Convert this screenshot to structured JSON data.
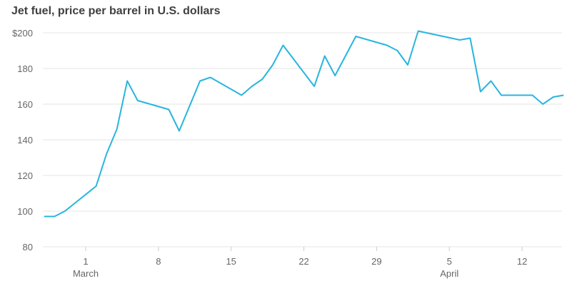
{
  "chart_data": {
    "type": "line",
    "title": "Jet fuel, price per barrel in U.S. dollars",
    "xlabel": "",
    "ylabel": "",
    "ylim": [
      80,
      200
    ],
    "yticks": [
      {
        "value": 200,
        "label": "$200"
      },
      {
        "value": 180,
        "label": "180"
      },
      {
        "value": 160,
        "label": "160"
      },
      {
        "value": 140,
        "label": "140"
      },
      {
        "value": 120,
        "label": "120"
      },
      {
        "value": 100,
        "label": "100"
      },
      {
        "value": 80,
        "label": "80"
      }
    ],
    "x_unit": "days since March 1",
    "xlim": [
      -4.1,
      46.2
    ],
    "xticks": [
      {
        "value": 0,
        "label": "1",
        "month": "March"
      },
      {
        "value": 7,
        "label": "8"
      },
      {
        "value": 14,
        "label": "15"
      },
      {
        "value": 21,
        "label": "22"
      },
      {
        "value": 28,
        "label": "29"
      },
      {
        "value": 35,
        "label": "5",
        "month": "April"
      },
      {
        "value": 42,
        "label": "12"
      }
    ],
    "grid": true,
    "line_color": "#29b5de",
    "series": [
      {
        "name": "Jet fuel price",
        "x": [
          -4,
          -3,
          -2,
          1,
          2,
          3,
          4,
          5,
          8,
          9,
          11,
          12,
          15,
          16,
          17,
          18,
          19,
          22,
          23,
          24,
          26,
          29,
          30,
          31,
          32,
          36,
          37,
          38,
          39,
          40,
          43,
          44,
          45,
          46
        ],
        "values": [
          97,
          97,
          100,
          114,
          132,
          146,
          173,
          162,
          157,
          145,
          173,
          175,
          165,
          170,
          174,
          182,
          193,
          170,
          187,
          176,
          198,
          193,
          190,
          182,
          201,
          196,
          197,
          167,
          173,
          165,
          165,
          160,
          164,
          165
        ]
      }
    ]
  }
}
